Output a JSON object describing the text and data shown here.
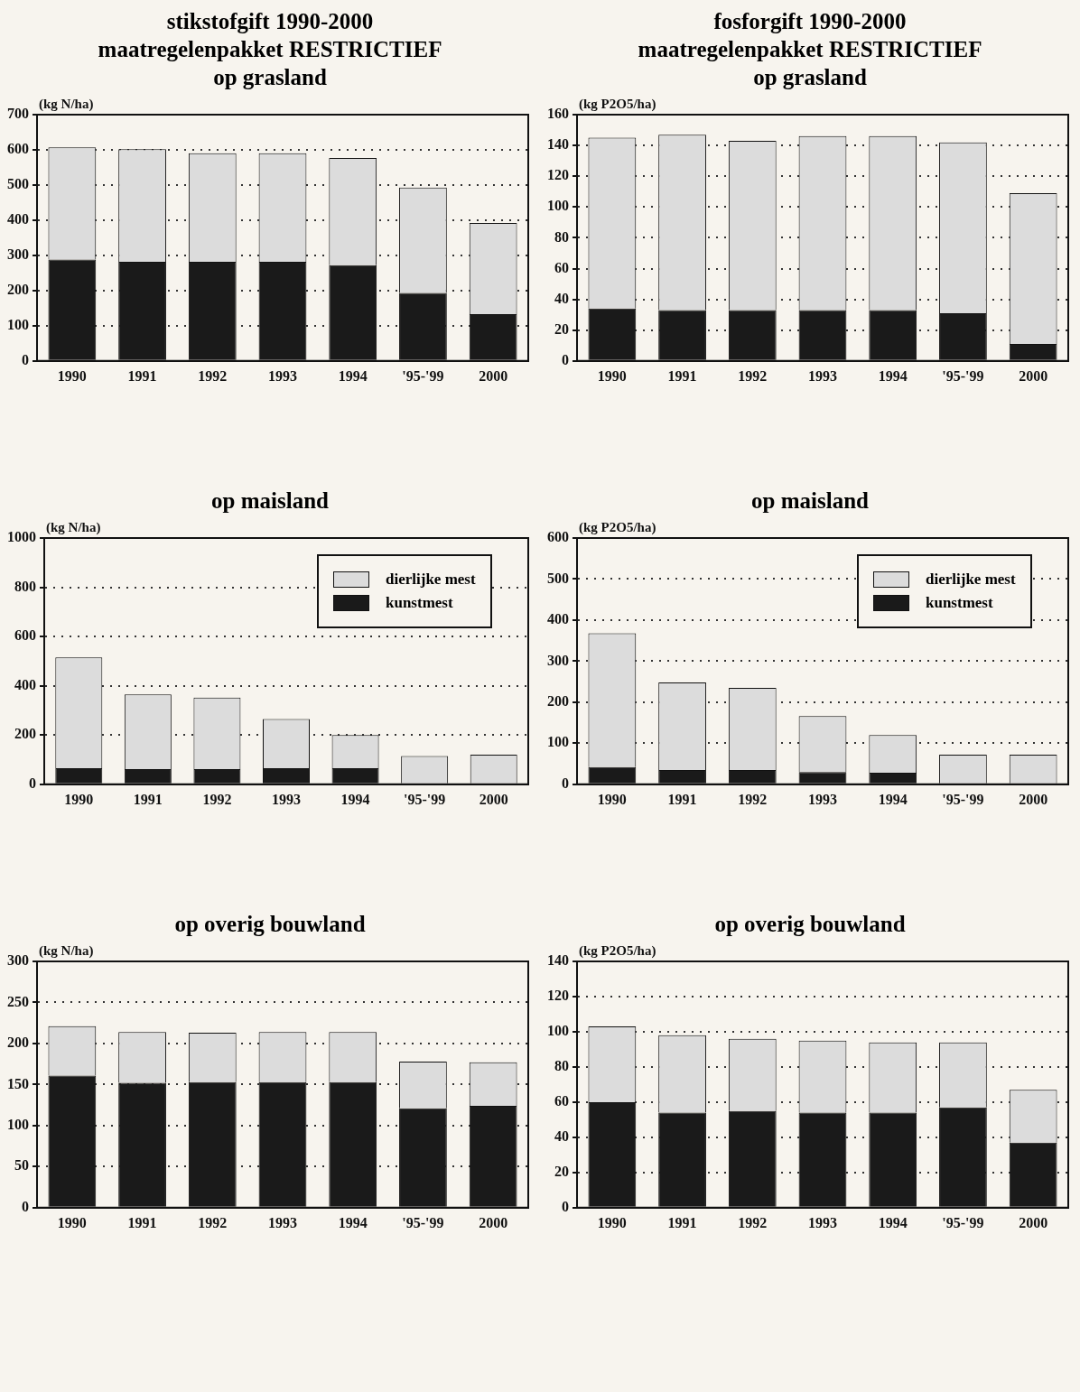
{
  "chart_data": [
    {
      "type": "bar",
      "title": "stikstofgift 1990-2000\nmaatregelenpakket RESTRICTIEF\nop grasland",
      "ylabel": "(kg N/ha)",
      "categories": [
        "1990",
        "1991",
        "1992",
        "1993",
        "1994",
        "'95-'99",
        "2000"
      ],
      "stacked": true,
      "ylim": [
        0,
        700
      ],
      "yticks": [
        0,
        100,
        200,
        300,
        400,
        500,
        600,
        700
      ],
      "grid": "y",
      "series": [
        {
          "color": "#1a1a1a",
          "values": [
            288,
            282,
            282,
            282,
            272,
            193,
            133
          ]
        },
        {
          "color": "#dcdcdc",
          "values": [
            319,
            320,
            308,
            308,
            305,
            300,
            259
          ]
        }
      ]
    },
    {
      "type": "bar",
      "title": "fosforgift 1990-2000\nmaatregelenpakket RESTRICTIEF\nop grasland",
      "ylabel": "(kg P2O5/ha)",
      "categories": [
        "1990",
        "1991",
        "1992",
        "1993",
        "1994",
        "'95-'99",
        "2000"
      ],
      "stacked": true,
      "ylim": [
        0,
        160
      ],
      "yticks": [
        0,
        20,
        40,
        60,
        80,
        100,
        120,
        140,
        160
      ],
      "grid": "y",
      "series": [
        {
          "color": "#1a1a1a",
          "values": [
            34,
            33,
            33,
            33,
            33,
            31,
            11
          ]
        },
        {
          "color": "#dcdcdc",
          "values": [
            111,
            114,
            110,
            113,
            113,
            111,
            98
          ]
        }
      ]
    },
    {
      "type": "bar",
      "title": "op maisland",
      "ylabel": "(kg N/ha)",
      "categories": [
        "1990",
        "1991",
        "1992",
        "1993",
        "1994",
        "'95-'99",
        "2000"
      ],
      "stacked": true,
      "ylim": [
        0,
        1000
      ],
      "yticks": [
        0,
        200,
        400,
        600,
        800,
        1000
      ],
      "grid": "y",
      "legend": "top right",
      "series": [
        {
          "name": "kunstmest",
          "color": "#1a1a1a",
          "values": [
            65,
            62,
            62,
            65,
            65,
            null,
            null
          ]
        },
        {
          "name": "dierlijke mest",
          "color": "#dcdcdc",
          "values": [
            450,
            303,
            290,
            200,
            135,
            115,
            120
          ]
        }
      ]
    },
    {
      "type": "bar",
      "title": "op maisland",
      "ylabel": "(kg P2O5/ha)",
      "categories": [
        "1990",
        "1991",
        "1992",
        "1993",
        "1994",
        "'95-'99",
        "2000"
      ],
      "stacked": true,
      "ylim": [
        0,
        600
      ],
      "yticks": [
        0,
        100,
        200,
        300,
        400,
        500,
        600
      ],
      "grid": "y",
      "legend": "top right",
      "series": [
        {
          "name": "kunstmest",
          "color": "#1a1a1a",
          "values": [
            42,
            35,
            35,
            30,
            28,
            null,
            null
          ]
        },
        {
          "name": "dierlijke mest",
          "color": "#dcdcdc",
          "values": [
            326,
            213,
            200,
            136,
            92,
            72,
            72
          ]
        }
      ]
    },
    {
      "type": "bar",
      "title": "op overig bouwland",
      "ylabel": "(kg N/ha)",
      "categories": [
        "1990",
        "1991",
        "1992",
        "1993",
        "1994",
        "'95-'99",
        "2000"
      ],
      "stacked": true,
      "ylim": [
        0,
        300
      ],
      "yticks": [
        0,
        50,
        100,
        150,
        200,
        250,
        300
      ],
      "grid": "y",
      "series": [
        {
          "color": "#1a1a1a",
          "values": [
            161,
            152,
            153,
            153,
            153,
            121,
            124
          ]
        },
        {
          "color": "#dcdcdc",
          "values": [
            60,
            62,
            60,
            61,
            61,
            57,
            53
          ]
        }
      ]
    },
    {
      "type": "bar",
      "title": "op overig bouwland",
      "ylabel": "(kg P2O5/ha)",
      "categories": [
        "1990",
        "1991",
        "1992",
        "1993",
        "1994",
        "'95-'99",
        "2000"
      ],
      "stacked": true,
      "ylim": [
        0,
        140
      ],
      "yticks": [
        0,
        20,
        40,
        60,
        80,
        100,
        120,
        140
      ],
      "grid": "y",
      "series": [
        {
          "color": "#1a1a1a",
          "values": [
            60,
            54,
            55,
            54,
            54,
            57,
            37
          ]
        },
        {
          "color": "#dcdcdc",
          "values": [
            43,
            44,
            41,
            41,
            40,
            37,
            30
          ]
        }
      ]
    }
  ]
}
